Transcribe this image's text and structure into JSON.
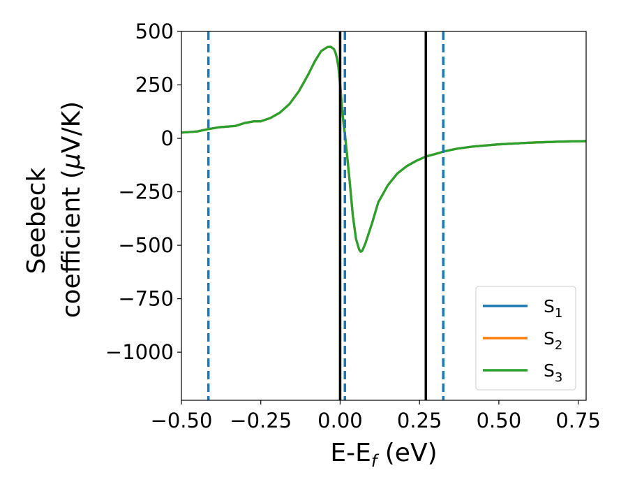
{
  "chart_data": {
    "type": "line",
    "xlabel": {
      "main": "E-E",
      "sub": "f",
      "unit": " (eV)"
    },
    "ylabel": {
      "line1": "Seebeck",
      "line2": "coefficient  (",
      "mu": "μ",
      "line2_end": "V/K)"
    },
    "xlim": [
      -0.5,
      0.775
    ],
    "ylim": [
      -1225,
      500
    ],
    "xticks": [
      -0.5,
      -0.25,
      0.0,
      0.25,
      0.5,
      0.75
    ],
    "xtick_labels": [
      "−0.50",
      "−0.25",
      "0.00",
      "0.25",
      "0.50",
      "0.75"
    ],
    "yticks": [
      500,
      250,
      0,
      -250,
      -500,
      -750,
      -1000
    ],
    "ytick_labels": [
      "500",
      "250",
      "0",
      "−250",
      "−500",
      "−750",
      "−1000"
    ],
    "grid": false,
    "legend": {
      "placement": "lower-right",
      "entries": [
        {
          "base": "S",
          "sub": "1",
          "color": "#1f77b4"
        },
        {
          "base": "S",
          "sub": "2",
          "color": "#ff7f0e"
        },
        {
          "base": "S",
          "sub": "3",
          "color": "#2ca02c"
        }
      ]
    },
    "series": [
      {
        "color": "#1f77b4",
        "x": [
          -0.5,
          -0.45,
          -0.42,
          -0.38,
          -0.33,
          -0.3,
          -0.27,
          -0.25,
          -0.22,
          -0.19,
          -0.16,
          -0.13,
          -0.1,
          -0.08,
          -0.06,
          -0.04,
          -0.03,
          -0.02,
          -0.015,
          -0.01,
          -0.005,
          0.0,
          0.005,
          0.01,
          0.015,
          0.02,
          0.03,
          0.04,
          0.05,
          0.06,
          0.065,
          0.07,
          0.08,
          0.1,
          0.12,
          0.15,
          0.18,
          0.21,
          0.24,
          0.27,
          0.3,
          0.33,
          0.37,
          0.42,
          0.5,
          0.6,
          0.7,
          0.775
        ],
        "y": [
          27,
          32,
          42,
          52,
          58,
          72,
          80,
          80,
          95,
          120,
          160,
          220,
          300,
          360,
          408,
          427,
          428,
          418,
          403,
          375,
          330,
          250,
          160,
          80,
          20,
          -50,
          -200,
          -360,
          -470,
          -520,
          -530,
          -525,
          -490,
          -400,
          -300,
          -220,
          -165,
          -130,
          -105,
          -85,
          -73,
          -60,
          -48,
          -38,
          -28,
          -20,
          -15,
          -13
        ]
      },
      {
        "color": "#ff7f0e",
        "x": [
          -0.5,
          -0.45,
          -0.42,
          -0.38,
          -0.33,
          -0.3,
          -0.27,
          -0.25,
          -0.22,
          -0.19,
          -0.16,
          -0.13,
          -0.1,
          -0.08,
          -0.06,
          -0.04,
          -0.03,
          -0.02,
          -0.015,
          -0.01,
          -0.005,
          0.0,
          0.005,
          0.01,
          0.015,
          0.02,
          0.03,
          0.04,
          0.05,
          0.06,
          0.065,
          0.07,
          0.08,
          0.1,
          0.12,
          0.15,
          0.18,
          0.21,
          0.24,
          0.27,
          0.3,
          0.33,
          0.37,
          0.42,
          0.5,
          0.6,
          0.7,
          0.775
        ],
        "y": [
          27,
          32,
          42,
          52,
          58,
          72,
          80,
          80,
          95,
          120,
          160,
          220,
          300,
          360,
          408,
          427,
          428,
          418,
          403,
          375,
          330,
          250,
          160,
          80,
          20,
          -50,
          -200,
          -360,
          -470,
          -520,
          -530,
          -525,
          -490,
          -400,
          -300,
          -220,
          -165,
          -130,
          -105,
          -85,
          -73,
          -60,
          -48,
          -38,
          -28,
          -20,
          -15,
          -13
        ]
      },
      {
        "color": "#2ca02c",
        "x": [
          -0.5,
          -0.45,
          -0.42,
          -0.38,
          -0.33,
          -0.3,
          -0.27,
          -0.25,
          -0.22,
          -0.19,
          -0.16,
          -0.13,
          -0.1,
          -0.08,
          -0.06,
          -0.04,
          -0.03,
          -0.02,
          -0.015,
          -0.01,
          -0.005,
          0.0,
          0.005,
          0.01,
          0.015,
          0.02,
          0.03,
          0.04,
          0.05,
          0.06,
          0.065,
          0.07,
          0.08,
          0.1,
          0.12,
          0.15,
          0.18,
          0.21,
          0.24,
          0.27,
          0.3,
          0.33,
          0.37,
          0.42,
          0.5,
          0.6,
          0.7,
          0.775
        ],
        "y": [
          27,
          32,
          42,
          52,
          58,
          72,
          80,
          80,
          95,
          120,
          160,
          220,
          300,
          360,
          408,
          427,
          428,
          418,
          403,
          375,
          330,
          250,
          160,
          80,
          20,
          -50,
          -200,
          -360,
          -470,
          -520,
          -530,
          -525,
          -490,
          -400,
          -300,
          -220,
          -165,
          -130,
          -105,
          -85,
          -73,
          -60,
          -48,
          -38,
          -28,
          -20,
          -15,
          -13
        ]
      }
    ],
    "vlines": [
      {
        "x": -0.415,
        "style": "dashed",
        "color": "#1f77b4"
      },
      {
        "x": 0.015,
        "style": "dashed",
        "color": "#1f77b4"
      },
      {
        "x": 0.325,
        "style": "dashed",
        "color": "#1f77b4"
      },
      {
        "x": 0.0,
        "style": "solid",
        "color": "#000000"
      },
      {
        "x": 0.27,
        "style": "solid",
        "color": "#000000"
      }
    ]
  }
}
